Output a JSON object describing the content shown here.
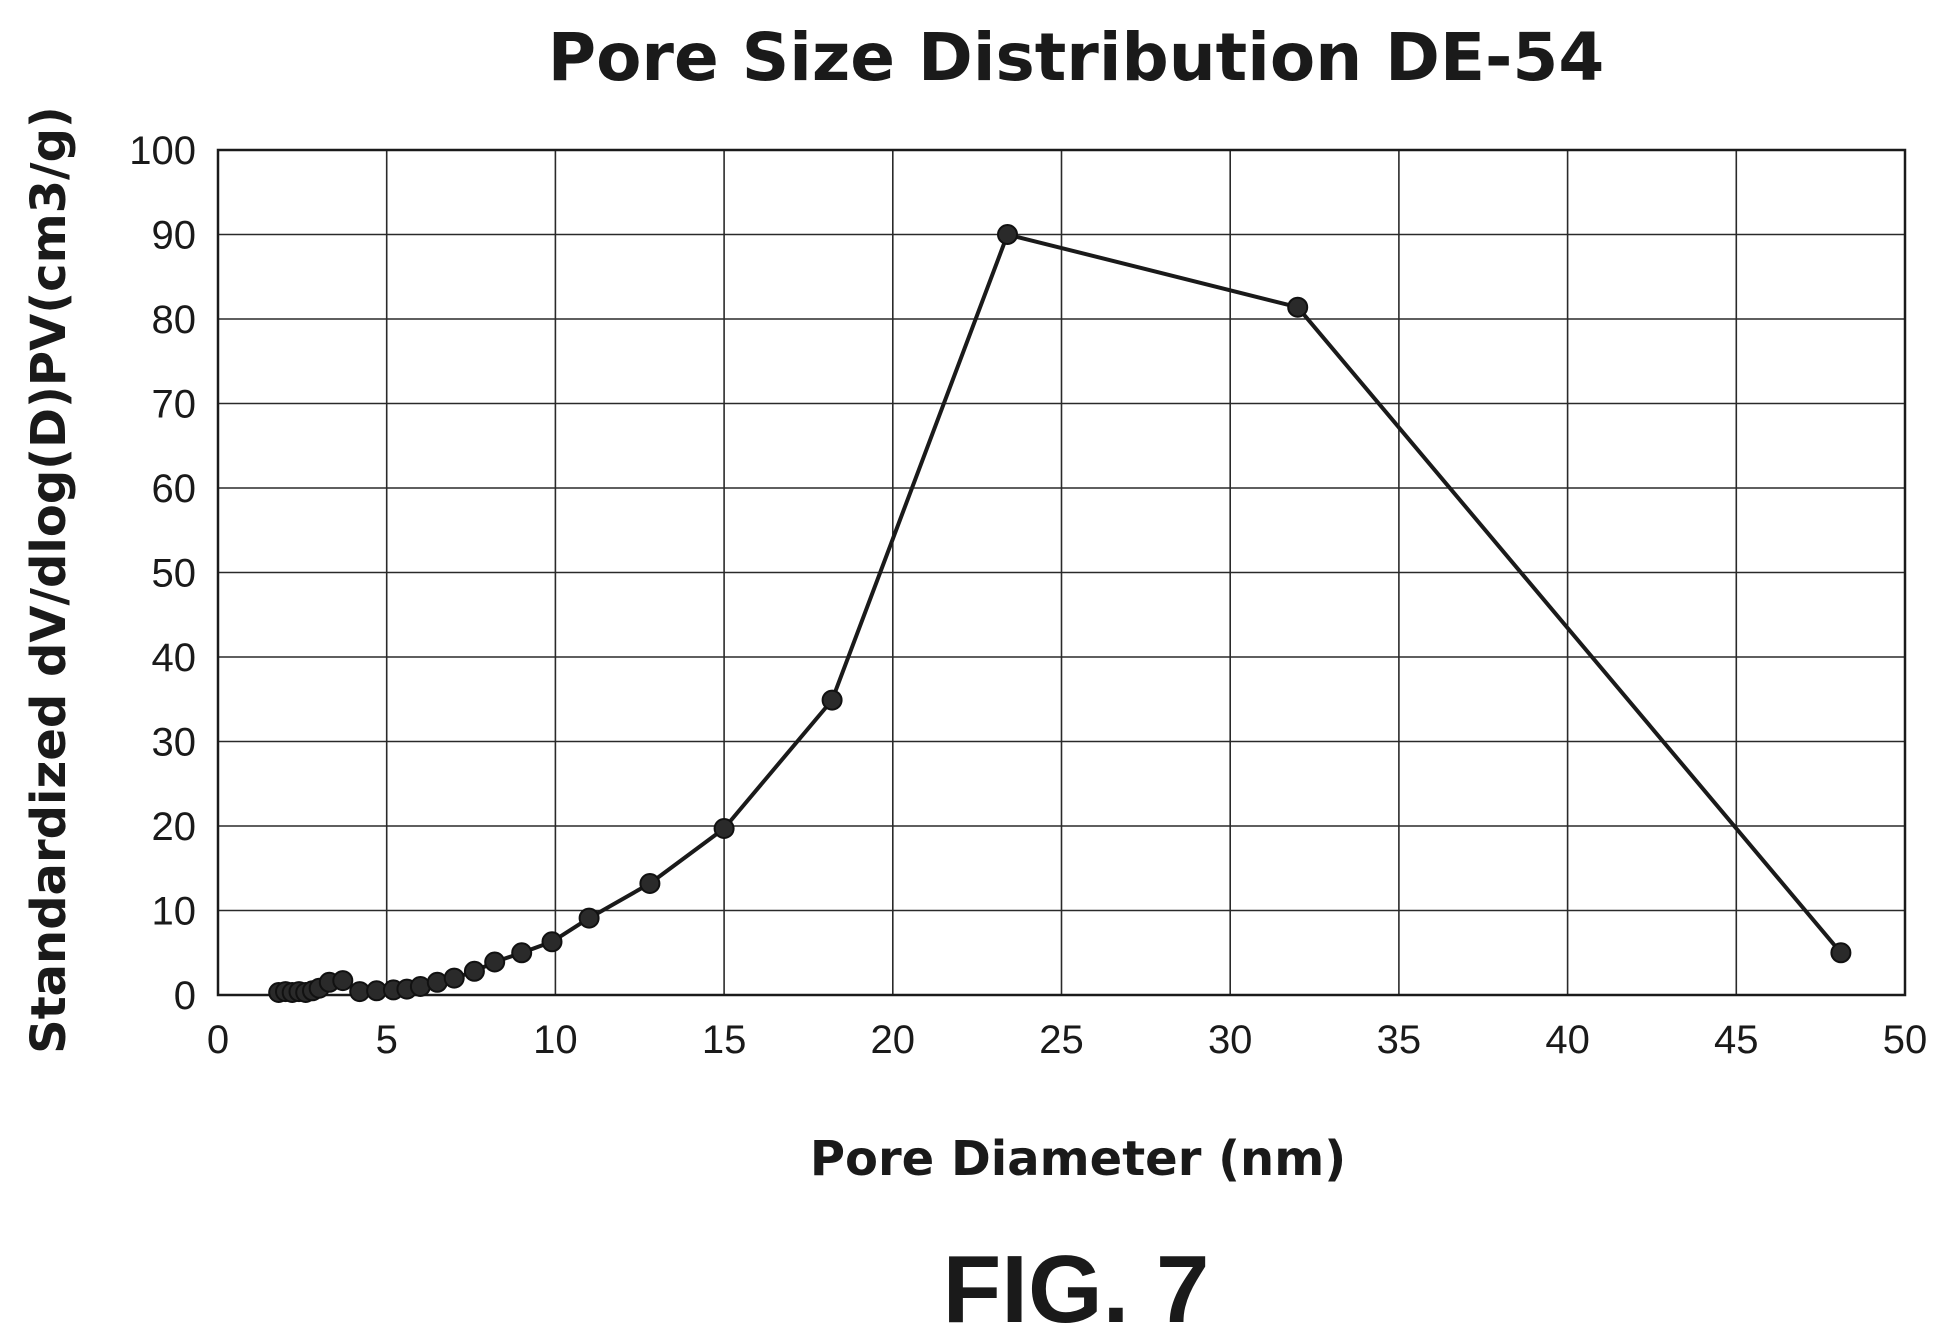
{
  "chart_data": {
    "type": "line",
    "title": "Pore Size Distribution DE-54",
    "xlabel": "Pore Diameter (nm)",
    "ylabel": "Standardized dV/dlog(D)PV(cm3/g)",
    "xlim": [
      0,
      50
    ],
    "ylim": [
      0,
      100
    ],
    "x_ticks": [
      "0",
      "5",
      "10",
      "15",
      "20",
      "25",
      "30",
      "35",
      "40",
      "45",
      "50"
    ],
    "y_ticks": [
      "0",
      "10",
      "20",
      "30",
      "40",
      "50",
      "60",
      "70",
      "80",
      "90",
      "100"
    ],
    "grid": true,
    "legend": "none",
    "markers": "circle",
    "line_color": "#1a1a1a",
    "series": [
      {
        "x": [
          1.8,
          2.0,
          2.2,
          2.4,
          2.6,
          2.8,
          3.0,
          3.3,
          3.7,
          4.2,
          4.7,
          5.2,
          5.6,
          6.0,
          6.5,
          7.0,
          7.6,
          8.2,
          9.0,
          9.9,
          11.0,
          12.8,
          15.0,
          18.2,
          23.4,
          32.0,
          48.1
        ],
        "y": [
          0.3,
          0.4,
          0.3,
          0.4,
          0.3,
          0.5,
          0.8,
          1.5,
          1.7,
          0.4,
          0.5,
          0.6,
          0.7,
          1.0,
          1.5,
          2.0,
          2.8,
          3.9,
          5.0,
          6.3,
          9.1,
          13.2,
          19.7,
          34.9,
          90.0,
          81.4,
          5.0
        ]
      }
    ]
  },
  "figure_label": "FIG. 7"
}
